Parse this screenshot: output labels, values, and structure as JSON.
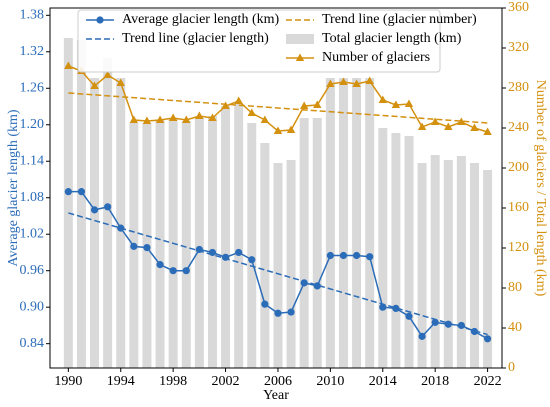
{
  "chart_data": {
    "type": "combo",
    "xlabel": "Year",
    "ylabel": "Average glacier length (km)",
    "y2label": "Number of glaciers / Total length (km)",
    "x": [
      1990,
      1991,
      1992,
      1993,
      1994,
      1995,
      1996,
      1997,
      1998,
      1999,
      2000,
      2001,
      2002,
      2003,
      2004,
      2005,
      2006,
      2007,
      2008,
      2009,
      2010,
      2011,
      2012,
      2013,
      2014,
      2015,
      2016,
      2017,
      2018,
      2019,
      2020,
      2021,
      2022
    ],
    "xlim": [
      1988.6,
      2023.1
    ],
    "xticks": [
      1990,
      1994,
      1998,
      2002,
      2006,
      2010,
      2014,
      2018,
      2022
    ],
    "ylim": [
      0.8,
      1.392
    ],
    "yticks": [
      0.84,
      {
        "value": 0.9,
        "label": "0.90"
      },
      0.96,
      1.02,
      1.08,
      1.14,
      {
        "value": 1.2,
        "label": "1.20"
      },
      1.26,
      1.32,
      1.38
    ],
    "y2lim": [
      0,
      360
    ],
    "y2ticks": [
      0,
      40,
      80,
      120,
      160,
      200,
      240,
      280,
      320,
      360
    ],
    "left_axis_color": "#2b6cb8",
    "right_axis_color": "#d4900f",
    "series": [
      {
        "name": "Average glacier length (km)",
        "kind": "line",
        "marker": "circle",
        "color": "#2b6cb8",
        "values": [
          1.09,
          1.09,
          1.06,
          1.065,
          1.03,
          1.0,
          0.998,
          0.97,
          0.96,
          0.96,
          0.995,
          0.99,
          0.982,
          0.99,
          0.978,
          0.905,
          0.89,
          0.892,
          0.94,
          0.935,
          0.985,
          0.985,
          0.985,
          0.983,
          0.9,
          0.898,
          0.885,
          0.852,
          0.875,
          0.872,
          0.87,
          0.86,
          0.848
        ]
      },
      {
        "name": "Trend line (glacier length)",
        "kind": "dashed",
        "color": "#2b6cb8",
        "x": [
          1990,
          2022
        ],
        "values": [
          1.055,
          0.855
        ]
      },
      {
        "name": "Trend line (glacier number)",
        "kind": "dashed",
        "axis": "y2",
        "color": "#d4900f",
        "x": [
          1990,
          2022
        ],
        "values": [
          275,
          245
        ]
      },
      {
        "name": "Total glacier length (km)",
        "kind": "bar",
        "axis": "y2",
        "color": "#d9d9d9",
        "values": [
          330,
          328,
          290,
          310,
          290,
          245,
          245,
          248,
          250,
          247,
          250,
          252,
          262,
          265,
          245,
          225,
          205,
          208,
          250,
          250,
          290,
          290,
          290,
          290,
          240,
          235,
          232,
          205,
          213,
          208,
          212,
          205,
          198
        ]
      },
      {
        "name": "Number of glaciers",
        "kind": "line",
        "marker": "triangle",
        "axis": "y2",
        "color": "#d4900f",
        "values": [
          302,
          297,
          282,
          293,
          285,
          248,
          247,
          248,
          250,
          248,
          252,
          250,
          262,
          267,
          255,
          248,
          237,
          238,
          262,
          263,
          284,
          286,
          284,
          287,
          268,
          263,
          264,
          241,
          246,
          241,
          246,
          240,
          236
        ]
      }
    ]
  }
}
